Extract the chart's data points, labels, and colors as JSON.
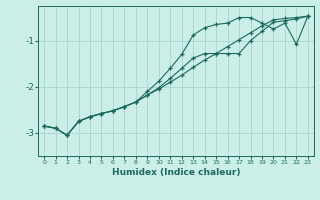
{
  "xlabel": "Humidex (Indice chaleur)",
  "bg_color": "#cceee8",
  "grid_color": "#aad4ce",
  "line_color": "#1a6b5a",
  "x_values": [
    0,
    1,
    2,
    3,
    4,
    5,
    6,
    7,
    8,
    9,
    10,
    11,
    12,
    13,
    14,
    15,
    16,
    17,
    18,
    19,
    20,
    21,
    22,
    23
  ],
  "series1": [
    -2.85,
    -2.9,
    -3.05,
    -2.75,
    -2.65,
    -2.58,
    -2.52,
    -2.43,
    -2.33,
    -2.18,
    -2.05,
    -1.9,
    -1.75,
    -1.58,
    -1.42,
    -1.28,
    -1.13,
    -0.98,
    -0.83,
    -0.68,
    -0.55,
    -0.52,
    -0.5,
    -0.47
  ],
  "series2": [
    -2.85,
    -2.9,
    -3.05,
    -2.75,
    -2.65,
    -2.58,
    -2.52,
    -2.43,
    -2.33,
    -2.18,
    -2.02,
    -1.82,
    -1.6,
    -1.38,
    -1.28,
    -1.28,
    -1.28,
    -1.28,
    -1.0,
    -0.8,
    -0.6,
    -0.57,
    -0.53,
    -0.47
  ],
  "series3": [
    -2.85,
    -2.9,
    -3.05,
    -2.75,
    -2.65,
    -2.58,
    -2.52,
    -2.43,
    -2.33,
    -2.1,
    -1.88,
    -1.6,
    -1.3,
    -0.88,
    -0.72,
    -0.65,
    -0.62,
    -0.5,
    -0.5,
    -0.62,
    -0.75,
    -0.62,
    -1.08,
    -0.47
  ],
  "ylim": [
    -3.5,
    -0.25
  ],
  "xlim": [
    -0.5,
    23.5
  ],
  "yticks": [
    -3,
    -2,
    -1
  ],
  "xticks": [
    0,
    1,
    2,
    3,
    4,
    5,
    6,
    7,
    8,
    9,
    10,
    11,
    12,
    13,
    14,
    15,
    16,
    17,
    18,
    19,
    20,
    21,
    22,
    23
  ]
}
